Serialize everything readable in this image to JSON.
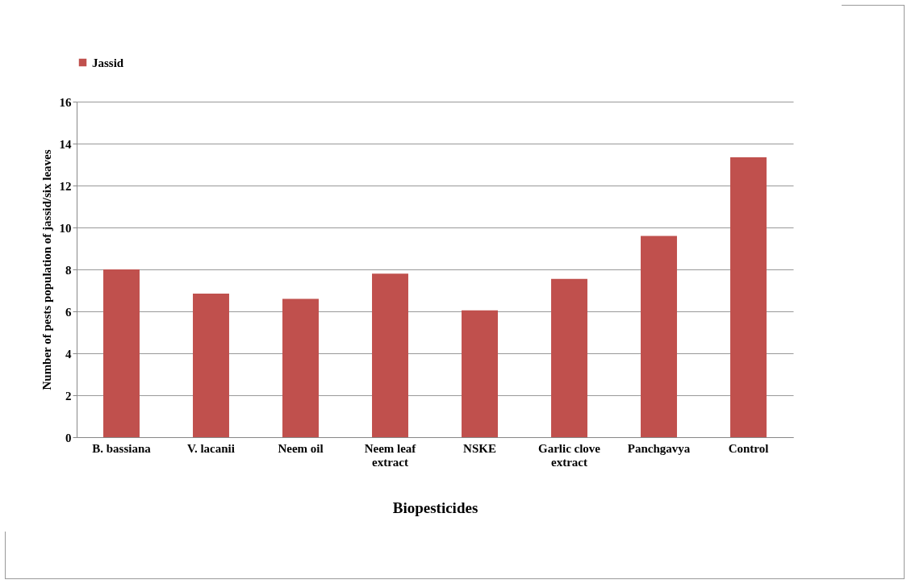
{
  "chart_data": {
    "type": "bar",
    "xlabel": "Biopesticides",
    "ylabel": "Number of pests  population of jassid/six leaves",
    "categories": [
      "B. bassiana",
      "V. lacanii",
      "Neem oil",
      "Neem leaf extract",
      "NSKE",
      "Garlic clove extract",
      "Panchgavya",
      "Control"
    ],
    "series": [
      {
        "name": "Jassid",
        "color": "#c0504d",
        "values": [
          8.0,
          6.85,
          6.6,
          7.8,
          6.05,
          7.55,
          9.6,
          13.35
        ]
      }
    ],
    "ylim": [
      0,
      16
    ],
    "yticks": [
      0,
      2,
      4,
      6,
      8,
      10,
      12,
      14,
      16
    ],
    "grid": "y",
    "legend": "top"
  }
}
